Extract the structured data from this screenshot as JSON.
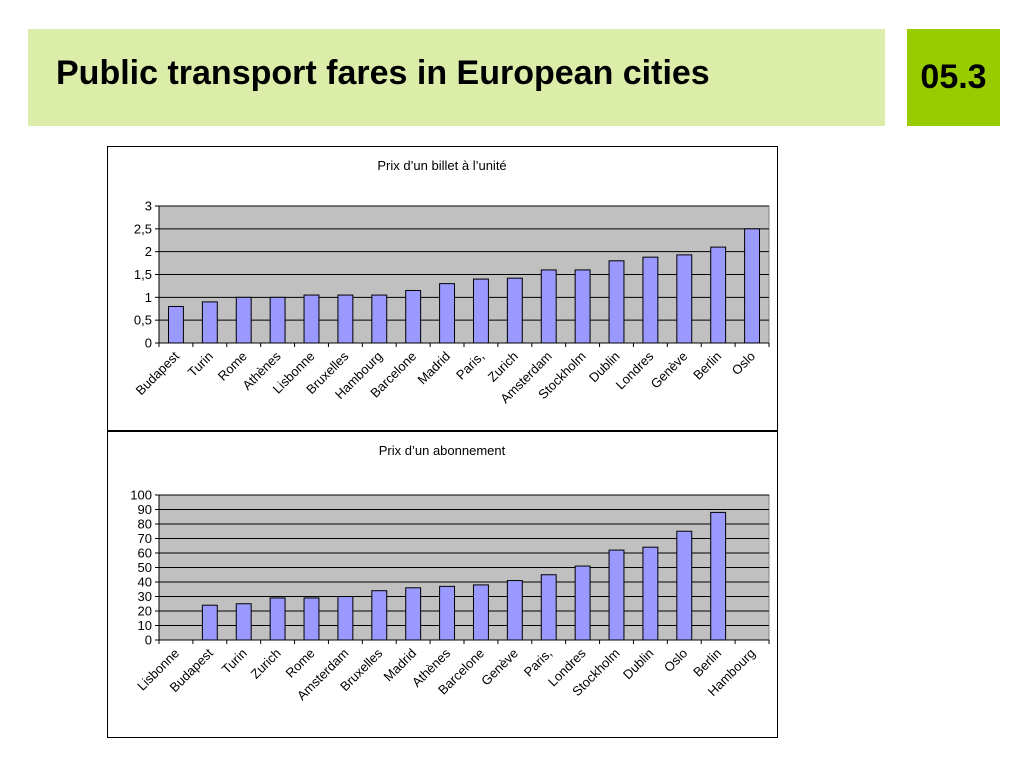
{
  "header": {
    "title": "Public transport fares in European cities",
    "slide_number": "05.3"
  },
  "colors": {
    "title_band": "#dcedaa",
    "number_box": "#99cc00",
    "plot_area": "#c0c0c0",
    "bar_fill": "#9999ff"
  },
  "chart_data": [
    {
      "type": "bar",
      "title": "Prix d’un billet à l’unité",
      "xlabel": "",
      "ylabel": "",
      "categories": [
        "Budapest",
        "Turin",
        "Rome",
        "Athènes",
        "Lisbonne",
        "Bruxelles",
        "Hambourg",
        "Barcelone",
        "Madrid",
        "Paris,",
        "Zurich",
        "Amsterdam",
        "Stockholm",
        "Dublin",
        "Londres",
        "Genève",
        "Berlin",
        "Oslo"
      ],
      "values": [
        0.8,
        0.9,
        1.0,
        1.0,
        1.05,
        1.05,
        1.05,
        1.15,
        1.3,
        1.4,
        1.42,
        1.6,
        1.6,
        1.8,
        1.88,
        1.93,
        2.1,
        2.5
      ],
      "ylim": [
        0,
        3
      ],
      "yticks": [
        0,
        0.5,
        1,
        1.5,
        2,
        2.5,
        3
      ],
      "ytick_labels": [
        "0",
        "0,5",
        "1",
        "1,5",
        "2",
        "2,5",
        "3"
      ],
      "grid": true,
      "legend": "none"
    },
    {
      "type": "bar",
      "title": "Prix d’un abonnement",
      "xlabel": "",
      "ylabel": "",
      "categories": [
        "Lisbonne",
        "Budapest",
        "Turin",
        "Zurich",
        "Rome",
        "Amsterdam",
        "Bruxelles",
        "Madrid",
        "Athènes",
        "Barcelone",
        "Genève",
        "Paris,",
        "Londres",
        "Stockholm",
        "Dublin",
        "Oslo",
        "Berlin",
        "Hambourg"
      ],
      "values": [
        null,
        24,
        25,
        29,
        29,
        30,
        34,
        36,
        37,
        38,
        41,
        45,
        51,
        62,
        64,
        75,
        88,
        null
      ],
      "ylim": [
        0,
        100
      ],
      "yticks": [
        0,
        10,
        20,
        30,
        40,
        50,
        60,
        70,
        80,
        90,
        100
      ],
      "ytick_labels": [
        "0",
        "10",
        "20",
        "30",
        "40",
        "50",
        "60",
        "70",
        "80",
        "90",
        "100"
      ],
      "grid": true,
      "legend": "none"
    }
  ]
}
